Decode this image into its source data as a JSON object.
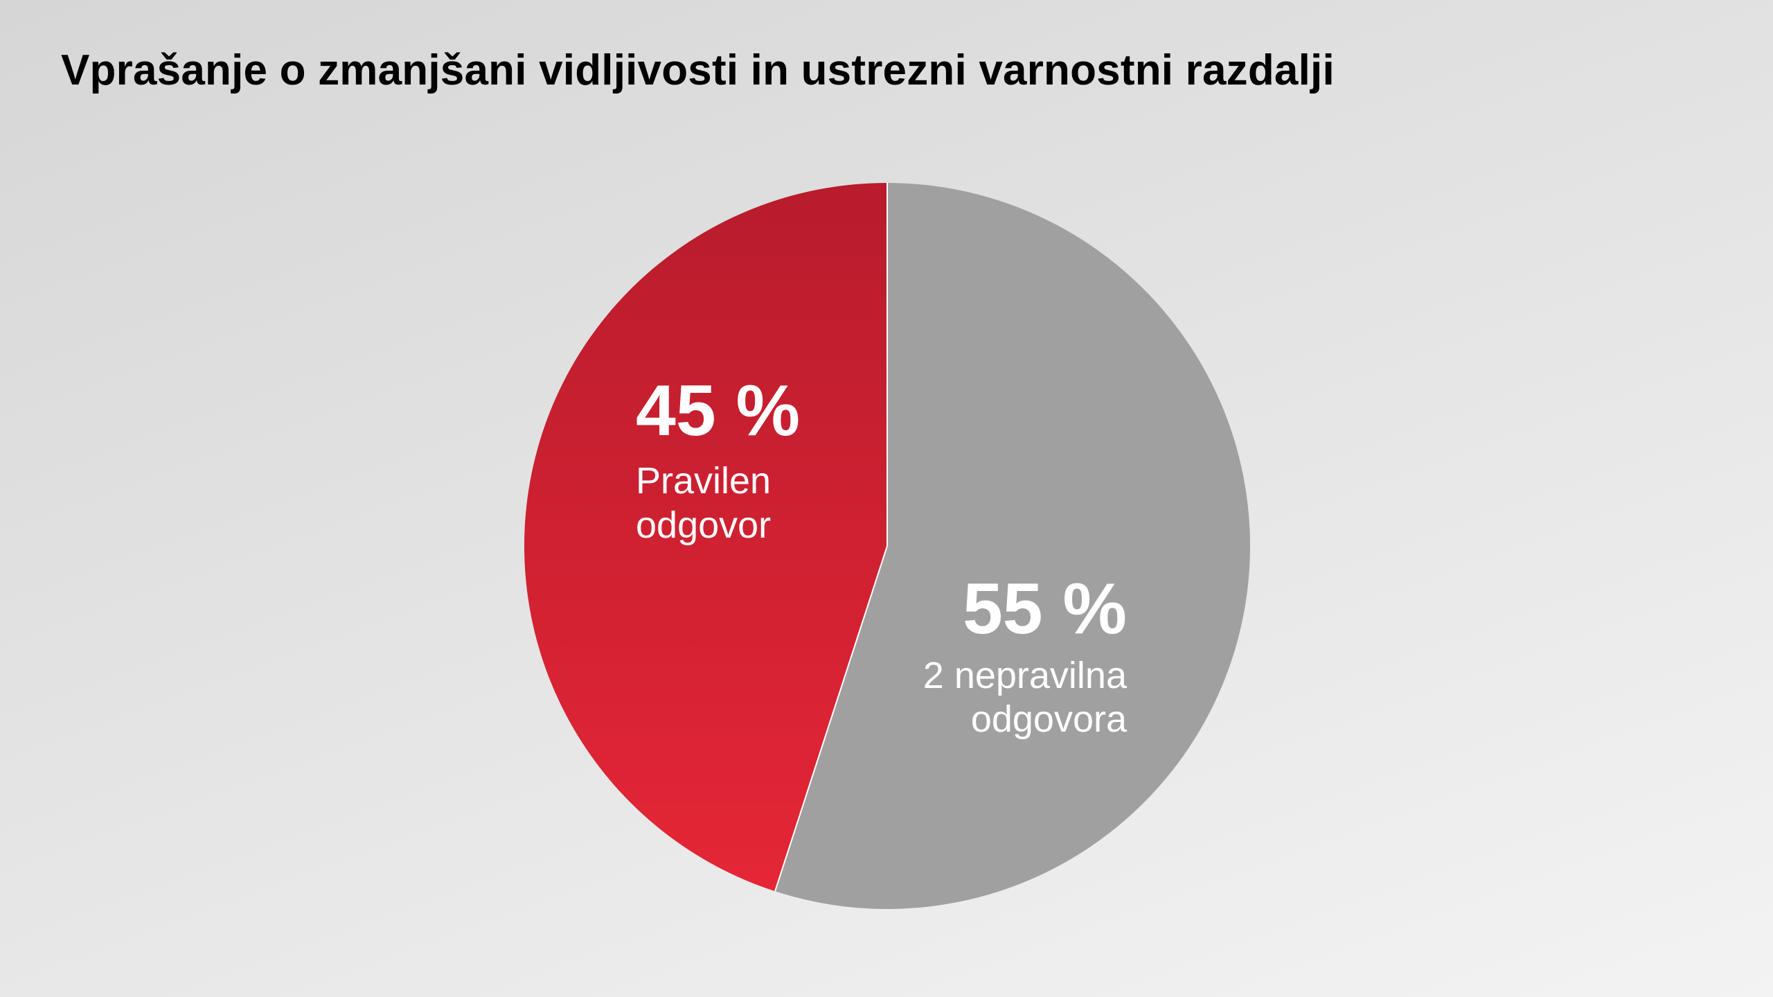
{
  "title": "Vprašanje o zmanjšani vidljivosti in ustrezni varnostni razdalji",
  "colors": {
    "correct_slice_dark": "#b81c2d",
    "correct_slice_light": "#e52636",
    "incorrect_slice": "#a0a0a0",
    "label_text": "#ffffff"
  },
  "chart_data": {
    "type": "pie",
    "title": "Vprašanje o zmanjšani vidljivosti in ustrezni varnostni razdalji",
    "start_angle": "12 o'clock",
    "direction": "counter-clockwise for first slice",
    "slices": [
      {
        "value": 45,
        "percent_label": "45 %",
        "label_lines": [
          "Pravilen",
          "odgovor"
        ],
        "color": "#d4202f"
      },
      {
        "value": 55,
        "percent_label": "55 %",
        "label_lines": [
          "2 nepravilna",
          "odgovora"
        ],
        "color": "#a0a0a0"
      }
    ]
  }
}
